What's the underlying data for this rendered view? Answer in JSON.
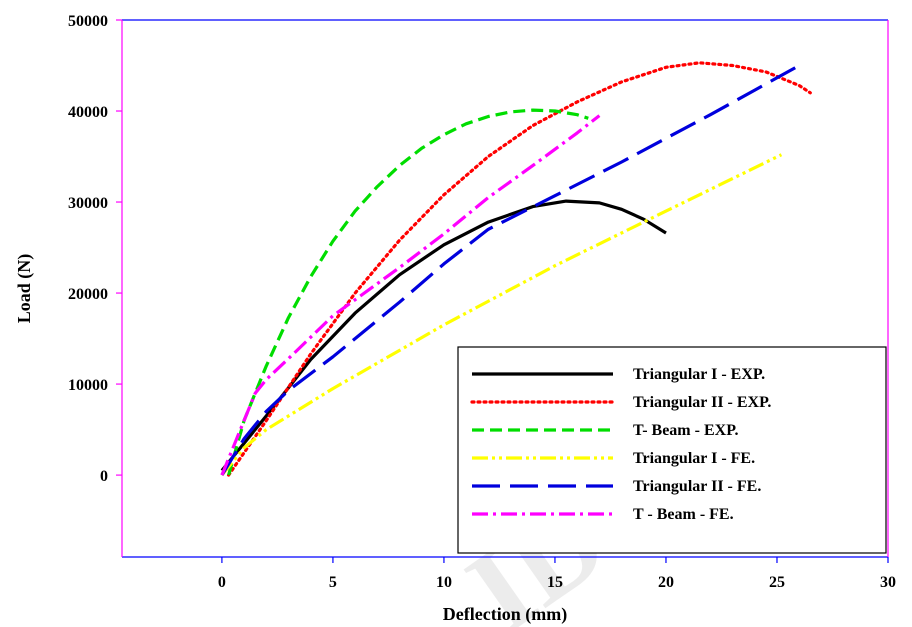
{
  "chart_data": {
    "type": "line",
    "title": "",
    "xlabel": "Deflection (mm)",
    "ylabel": "Load (N)",
    "xlim": [
      -4.5,
      30
    ],
    "ylim": [
      -9000,
      50000
    ],
    "x_ticks": [
      0,
      5,
      10,
      15,
      20,
      25,
      30
    ],
    "y_ticks": [
      0,
      10000,
      20000,
      30000,
      40000,
      50000
    ],
    "legend_position": "bottom-right",
    "grid": false,
    "series": [
      {
        "name": "Triangular I - EXP.",
        "color": "#000000",
        "style": "solid",
        "x": [
          0,
          2,
          4,
          6,
          8,
          10,
          12,
          14,
          15.5,
          17,
          18,
          19,
          20
        ],
        "y": [
          500,
          6500,
          12700,
          17800,
          22000,
          25300,
          27800,
          29500,
          30100,
          29900,
          29200,
          28100,
          26600
        ]
      },
      {
        "name": "Triangular II - EXP.",
        "color": "#ff0000",
        "style": "dotted",
        "x": [
          0.3,
          2,
          4,
          6,
          8,
          10,
          12,
          14,
          16,
          18,
          20,
          21.5,
          23,
          24.5,
          26,
          26.5
        ],
        "y": [
          0,
          6000,
          13300,
          20000,
          25800,
          30800,
          35000,
          38400,
          41000,
          43200,
          44800,
          45300,
          45000,
          44300,
          42800,
          42000
        ]
      },
      {
        "name": "T- Beam - EXP.",
        "color": "#00dd00",
        "style": "dashed",
        "x": [
          0.3,
          1,
          2,
          3,
          4,
          5,
          6,
          7,
          8,
          9,
          10,
          11,
          12,
          13,
          14,
          15,
          16,
          16.5
        ],
        "y": [
          0,
          6000,
          12000,
          17300,
          21800,
          25700,
          29000,
          31700,
          34000,
          35900,
          37400,
          38600,
          39400,
          39900,
          40100,
          40000,
          39600,
          39200
        ]
      },
      {
        "name": "Triangular I - FE.",
        "color": "#ffff00",
        "style": "dashdotdot",
        "x": [
          0,
          1,
          2,
          5,
          10,
          15,
          20,
          25.2
        ],
        "y": [
          0,
          3000,
          5000,
          9500,
          16500,
          23000,
          29000,
          35200
        ]
      },
      {
        "name": "Triangular II - FE.",
        "color": "#0000dd",
        "style": "longdash",
        "x": [
          0,
          1,
          2,
          3,
          5,
          8,
          10,
          12,
          15,
          18,
          20,
          22,
          24,
          26
        ],
        "y": [
          0,
          4000,
          7000,
          9300,
          13000,
          19000,
          23200,
          27000,
          30700,
          34400,
          37000,
          39600,
          42300,
          45000
        ]
      },
      {
        "name": "T - Beam - FE.",
        "color": "#ff00ff",
        "style": "dashdot",
        "x": [
          0,
          0.5,
          1,
          1.5,
          2,
          3,
          5,
          8,
          10,
          12,
          14,
          16,
          17
        ],
        "y": [
          0,
          3000,
          6000,
          9000,
          10500,
          12800,
          17500,
          22800,
          26500,
          30500,
          34000,
          37600,
          39500
        ]
      }
    ]
  },
  "watermark_text": "ID"
}
